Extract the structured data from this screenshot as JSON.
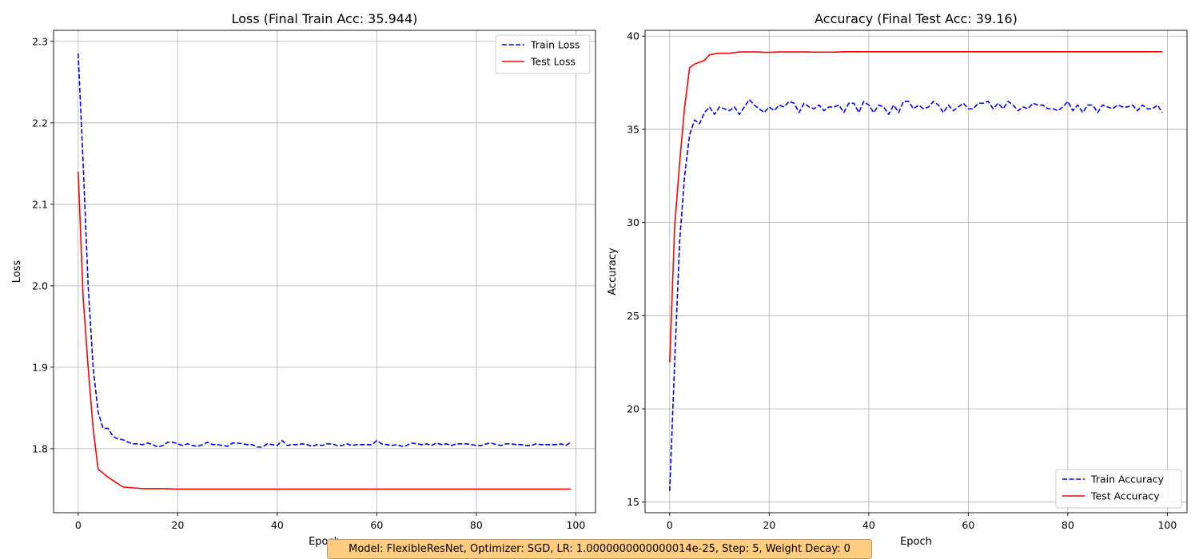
{
  "caption": "Model: FlexibleResNet, Optimizer: SGD, LR: 1.0000000000000014e-25, Step: 5, Weight Decay: 0",
  "chart_data": [
    {
      "type": "line",
      "title": "Loss (Final Train Acc: 35.944)",
      "xlabel": "Epoch",
      "ylabel": "Loss",
      "xlim": [
        -4.95,
        103.95
      ],
      "ylim": [
        1.7215,
        2.3135
      ],
      "xticks": [
        0,
        20,
        40,
        60,
        80,
        100
      ],
      "yticks": [
        1.8,
        1.9,
        2.0,
        2.1,
        2.2,
        2.3
      ],
      "ytick_labels": [
        "1.8",
        "1.9",
        "2.0",
        "2.1",
        "2.2",
        "2.3"
      ],
      "grid": true,
      "legend": "top-right",
      "series": [
        {
          "name": "Train Loss",
          "color": "#0000ff",
          "style": "dashed",
          "values": [
            2.285,
            2.15,
            2.0,
            1.9,
            1.845,
            1.825,
            1.825,
            1.815,
            1.812,
            1.811,
            1.808,
            1.806,
            1.806,
            1.805,
            1.807,
            1.805,
            1.802,
            1.804,
            1.808,
            1.808,
            1.806,
            1.804,
            1.806,
            1.804,
            1.803,
            1.805,
            1.808,
            1.805,
            1.805,
            1.804,
            1.803,
            1.807,
            1.807,
            1.806,
            1.805,
            1.805,
            1.802,
            1.802,
            1.806,
            1.805,
            1.804,
            1.81,
            1.804,
            1.805,
            1.805,
            1.806,
            1.805,
            1.803,
            1.805,
            1.804,
            1.806,
            1.806,
            1.804,
            1.804,
            1.806,
            1.804,
            1.805,
            1.805,
            1.805,
            1.805,
            1.81,
            1.806,
            1.805,
            1.804,
            1.805,
            1.803,
            1.804,
            1.807,
            1.806,
            1.805,
            1.806,
            1.804,
            1.807,
            1.805,
            1.806,
            1.804,
            1.806,
            1.806,
            1.806,
            1.805,
            1.804,
            1.804,
            1.806,
            1.807,
            1.805,
            1.804,
            1.806,
            1.806,
            1.805,
            1.805,
            1.804,
            1.804,
            1.806,
            1.805,
            1.805,
            1.805,
            1.805,
            1.806,
            1.804,
            1.808
          ]
        },
        {
          "name": "Test Loss",
          "color": "#ff0000",
          "style": "solid",
          "values": [
            2.14,
            1.985,
            1.9,
            1.825,
            1.775,
            1.77,
            1.765,
            1.761,
            1.757,
            1.753,
            1.7525,
            1.752,
            1.7515,
            1.751,
            1.751,
            1.751,
            1.751,
            1.751,
            1.751,
            1.7505,
            1.7505,
            1.7505,
            1.7505,
            1.7505,
            1.7505,
            1.7505,
            1.7505,
            1.7505,
            1.7505,
            1.7505,
            1.7505,
            1.7505,
            1.7505,
            1.7505,
            1.7505,
            1.7505,
            1.7505,
            1.7505,
            1.7505,
            1.7505,
            1.7505,
            1.7505,
            1.7505,
            1.7505,
            1.7505,
            1.7505,
            1.7505,
            1.7505,
            1.7505,
            1.7505,
            1.7505,
            1.7505,
            1.7505,
            1.7505,
            1.7505,
            1.7505,
            1.7505,
            1.7505,
            1.7505,
            1.7505,
            1.7505,
            1.7505,
            1.7505,
            1.7505,
            1.7505,
            1.7505,
            1.7505,
            1.7505,
            1.7505,
            1.7505,
            1.7505,
            1.7505,
            1.7505,
            1.7505,
            1.7505,
            1.7505,
            1.7505,
            1.7505,
            1.7505,
            1.7505,
            1.7505,
            1.7505,
            1.7505,
            1.7505,
            1.7505,
            1.7505,
            1.7505,
            1.7505,
            1.7505,
            1.7505,
            1.7505,
            1.7505,
            1.7505,
            1.7505,
            1.7505,
            1.7505,
            1.7505,
            1.7505,
            1.7505,
            1.7505
          ]
        }
      ]
    },
    {
      "type": "line",
      "title": "Accuracy (Final Test Acc: 39.16)",
      "xlabel": "Epoch",
      "ylabel": "Accuracy",
      "xlim": [
        -4.95,
        103.95
      ],
      "ylim": [
        14.43,
        40.31
      ],
      "xticks": [
        0,
        20,
        40,
        60,
        80,
        100
      ],
      "yticks": [
        15,
        20,
        25,
        30,
        35,
        40
      ],
      "ytick_labels": [
        "15",
        "20",
        "25",
        "30",
        "35",
        "40"
      ],
      "grid": true,
      "legend": "bottom-right",
      "series": [
        {
          "name": "Train Accuracy",
          "color": "#0000ff",
          "style": "dashed",
          "values": [
            15.6,
            22.5,
            29.0,
            32.5,
            34.7,
            35.5,
            35.3,
            35.9,
            36.2,
            35.8,
            36.2,
            36.1,
            36.0,
            36.2,
            35.8,
            36.2,
            36.6,
            36.3,
            36.1,
            35.9,
            36.2,
            36.0,
            36.3,
            36.2,
            36.5,
            36.4,
            35.9,
            36.4,
            36.2,
            36.1,
            36.3,
            36.0,
            36.2,
            36.2,
            36.3,
            35.9,
            36.4,
            36.4,
            35.9,
            36.5,
            36.3,
            35.9,
            36.3,
            36.2,
            35.8,
            36.3,
            35.9,
            36.5,
            36.5,
            36.1,
            36.3,
            36.1,
            36.2,
            36.5,
            36.3,
            35.9,
            36.3,
            36.0,
            36.2,
            36.4,
            36.1,
            36.1,
            36.4,
            36.4,
            36.5,
            36.1,
            36.4,
            36.1,
            36.5,
            36.3,
            36.0,
            36.2,
            36.1,
            36.4,
            36.3,
            36.3,
            36.1,
            36.1,
            36.0,
            36.2,
            36.5,
            36.0,
            36.3,
            35.9,
            36.3,
            36.3,
            35.9,
            36.3,
            36.2,
            36.1,
            36.3,
            36.2,
            36.2,
            36.3,
            36.0,
            36.3,
            36.1,
            36.1,
            36.3,
            35.9
          ]
        },
        {
          "name": "Test Accuracy",
          "color": "#ff0000",
          "style": "solid",
          "values": [
            22.5,
            29.8,
            33.2,
            36.2,
            38.3,
            38.5,
            38.6,
            38.7,
            39.0,
            39.05,
            39.08,
            39.08,
            39.08,
            39.12,
            39.15,
            39.15,
            39.15,
            39.15,
            39.15,
            39.13,
            39.13,
            39.14,
            39.15,
            39.15,
            39.15,
            39.15,
            39.15,
            39.15,
            39.15,
            39.14,
            39.14,
            39.14,
            39.14,
            39.14,
            39.15,
            39.16,
            39.16,
            39.16,
            39.16,
            39.16,
            39.16,
            39.16,
            39.16,
            39.16,
            39.16,
            39.16,
            39.16,
            39.16,
            39.16,
            39.16,
            39.16,
            39.16,
            39.16,
            39.16,
            39.16,
            39.16,
            39.16,
            39.16,
            39.16,
            39.16,
            39.16,
            39.16,
            39.16,
            39.16,
            39.16,
            39.16,
            39.16,
            39.16,
            39.16,
            39.16,
            39.16,
            39.16,
            39.16,
            39.16,
            39.16,
            39.16,
            39.16,
            39.16,
            39.16,
            39.16,
            39.16,
            39.16,
            39.16,
            39.16,
            39.16,
            39.16,
            39.16,
            39.16,
            39.16,
            39.16,
            39.16,
            39.16,
            39.16,
            39.16,
            39.16,
            39.16,
            39.16,
            39.16,
            39.16,
            39.16
          ]
        }
      ]
    }
  ]
}
